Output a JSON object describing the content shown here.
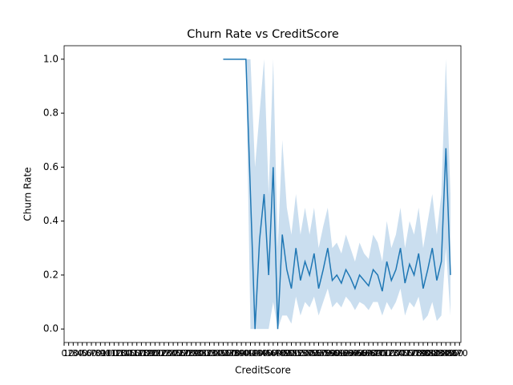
{
  "chart_data": {
    "type": "line",
    "title": "Churn Rate vs CreditScore",
    "x_label": "CreditScore",
    "y_label": "Churn Rate",
    "x": [
      350,
      360,
      370,
      380,
      390,
      400,
      410,
      420,
      430,
      440,
      450,
      460,
      470,
      480,
      490,
      500,
      510,
      520,
      530,
      540,
      550,
      560,
      570,
      580,
      590,
      600,
      610,
      620,
      630,
      640,
      650,
      660,
      670,
      680,
      690,
      700,
      710,
      720,
      730,
      740,
      750,
      760,
      770,
      780,
      790,
      800,
      810,
      820,
      830,
      840,
      850
    ],
    "series": [
      {
        "color": "#1f77b4",
        "band_color": "#a6c8e4",
        "values": [
          1,
          1,
          1,
          1,
          1,
          1,
          0.5,
          0,
          0.33,
          0.5,
          0.2,
          0.6,
          0,
          0.35,
          0.22,
          0.15,
          0.3,
          0.18,
          0.25,
          0.2,
          0.28,
          0.15,
          0.22,
          0.3,
          0.18,
          0.2,
          0.17,
          0.22,
          0.19,
          0.15,
          0.2,
          0.18,
          0.16,
          0.22,
          0.2,
          0.14,
          0.25,
          0.18,
          0.22,
          0.3,
          0.17,
          0.24,
          0.2,
          0.28,
          0.15,
          0.22,
          0.3,
          0.18,
          0.25,
          0.67,
          0.2
        ],
        "ci_lower": [
          1,
          1,
          1,
          1,
          1,
          1,
          0,
          0,
          0,
          0,
          0,
          0.1,
          0,
          0.05,
          0.05,
          0.02,
          0.12,
          0.05,
          0.1,
          0.08,
          0.12,
          0.05,
          0.1,
          0.15,
          0.08,
          0.1,
          0.08,
          0.12,
          0.1,
          0.07,
          0.1,
          0.09,
          0.07,
          0.1,
          0.1,
          0.05,
          0.1,
          0.07,
          0.1,
          0.15,
          0.05,
          0.1,
          0.08,
          0.12,
          0.03,
          0.05,
          0.1,
          0.03,
          0.05,
          0.3,
          0.05
        ],
        "ci_upper": [
          1,
          1,
          1,
          1,
          1,
          1,
          1,
          0.6,
          0.8,
          1,
          0.5,
          1,
          0.3,
          0.7,
          0.45,
          0.35,
          0.5,
          0.35,
          0.45,
          0.35,
          0.45,
          0.3,
          0.38,
          0.45,
          0.3,
          0.32,
          0.28,
          0.35,
          0.3,
          0.25,
          0.32,
          0.28,
          0.26,
          0.35,
          0.32,
          0.25,
          0.4,
          0.3,
          0.35,
          0.45,
          0.3,
          0.4,
          0.35,
          0.45,
          0.3,
          0.4,
          0.5,
          0.35,
          0.5,
          1,
          0.5
        ]
      }
    ],
    "xlim": [
      0,
      873
    ],
    "ylim": [
      -0.05,
      1.05
    ],
    "xticks": [
      0,
      10,
      20,
      30,
      40,
      50,
      60,
      70,
      80,
      90,
      100,
      110,
      120,
      130,
      140,
      150,
      160,
      170,
      180,
      190,
      200,
      210,
      220,
      230,
      240,
      250,
      260,
      270,
      280,
      290,
      300,
      310,
      320,
      330,
      340,
      350,
      360,
      370,
      380,
      390,
      400,
      410,
      420,
      430,
      440,
      450,
      460,
      470,
      480,
      490,
      500,
      510,
      520,
      530,
      540,
      550,
      560,
      570,
      580,
      590,
      600,
      610,
      620,
      630,
      640,
      650,
      660,
      670,
      680,
      690,
      700,
      710,
      720,
      730,
      740,
      750,
      760,
      770,
      780,
      790,
      800,
      810,
      820,
      830,
      840,
      850,
      860,
      870
    ],
    "yticks": [
      {
        "value": 0,
        "label": "0.0"
      },
      {
        "value": 0.2,
        "label": "0.2"
      },
      {
        "value": 0.4,
        "label": "0.4"
      },
      {
        "value": 0.6,
        "label": "0.6"
      },
      {
        "value": 0.8,
        "label": "0.8"
      },
      {
        "value": 1,
        "label": "1.0"
      }
    ]
  }
}
